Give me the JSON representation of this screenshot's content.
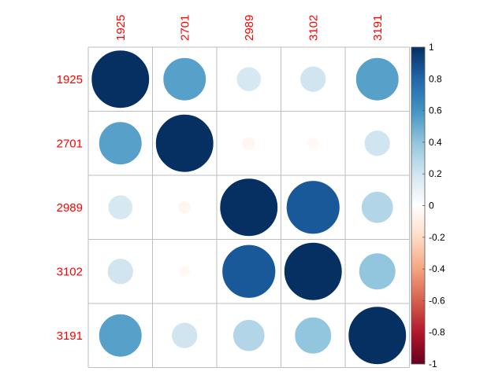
{
  "chart_data": {
    "type": "heatmap",
    "style": "corrplot-circle",
    "variables": [
      "1925",
      "2701",
      "2989",
      "3102",
      "3191"
    ],
    "matrix": [
      [
        1.0,
        0.55,
        0.18,
        0.2,
        0.55
      ],
      [
        0.55,
        1.0,
        -0.05,
        -0.04,
        0.2
      ],
      [
        0.18,
        -0.05,
        1.0,
        0.85,
        0.3
      ],
      [
        0.2,
        -0.04,
        0.85,
        1.0,
        0.4
      ],
      [
        0.55,
        0.2,
        0.3,
        0.4,
        1.0
      ]
    ],
    "colorbar": {
      "range": [
        -1,
        1
      ],
      "tick_values": [
        1,
        0.8,
        0.6,
        0.4,
        0.2,
        0,
        -0.2,
        -0.4,
        -0.6,
        -0.8,
        -1
      ],
      "tick_labels": [
        "1",
        "0.8",
        "0.6",
        "0.4",
        "0.2",
        "0",
        "-0.2",
        "-0.4",
        "-0.6",
        "-0.8",
        "-1"
      ],
      "colors": [
        "#67001F",
        "#B2182B",
        "#D6604D",
        "#F4A582",
        "#FDDBC7",
        "#FFFFFF",
        "#D1E5F0",
        "#92C5DE",
        "#4393C3",
        "#2166AC",
        "#053061"
      ]
    },
    "label_color": "#ff0000",
    "grid_color": "#bebebe"
  }
}
